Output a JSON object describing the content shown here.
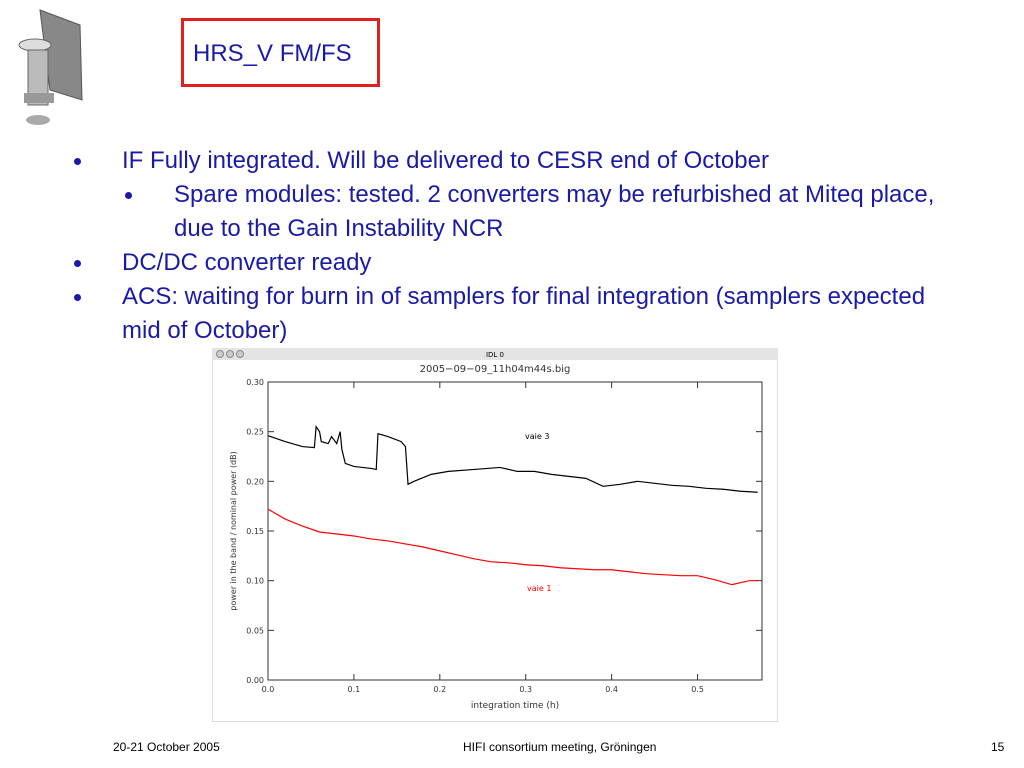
{
  "header": {
    "title": "HRS_V FM/FS"
  },
  "bullets": [
    {
      "text": "IF Fully integrated. Will be delivered to CESR end of October",
      "children": [
        {
          "text": "Spare modules: tested. 2 converters may be refurbished  at Miteq place, due to the Gain Instability NCR"
        }
      ]
    },
    {
      "text": "DC/DC converter ready",
      "children": []
    },
    {
      "text": "ACS: waiting for burn in of samplers for final integration (samplers expected mid of October)",
      "children": []
    }
  ],
  "window": {
    "title": "IDL 0"
  },
  "chart_data": {
    "type": "line",
    "title": "2005−09−09_11h04m44s.big",
    "x_label": "integration time (h)",
    "y_label": "power in the band / nominal power (dB)",
    "xlim": [
      0,
      0.575
    ],
    "ylim": [
      0,
      0.3
    ],
    "xticks": [
      {
        "value": 0,
        "label": "0.0"
      },
      {
        "value": 0.1,
        "label": "0.1"
      },
      {
        "value": 0.2,
        "label": "0.2"
      },
      {
        "value": 0.3,
        "label": "0.3"
      },
      {
        "value": 0.4,
        "label": "0.4"
      },
      {
        "value": 0.5,
        "label": "0.5"
      }
    ],
    "yticks": [
      {
        "value": 0,
        "label": "0.00"
      },
      {
        "value": 0.05,
        "label": "0.05"
      },
      {
        "value": 0.1,
        "label": "0.10"
      },
      {
        "value": 0.15,
        "label": "0.15"
      },
      {
        "value": 0.2,
        "label": "0.20"
      },
      {
        "value": 0.25,
        "label": "0.25"
      },
      {
        "value": 0.3,
        "label": "0.30"
      }
    ],
    "series": [
      {
        "name": "vaie 3",
        "color": "#000000",
        "x": [
          0,
          0.02,
          0.04,
          0.054,
          0.056,
          0.06,
          0.062,
          0.07,
          0.074,
          0.08,
          0.084,
          0.086,
          0.09,
          0.1,
          0.12,
          0.126,
          0.128,
          0.14,
          0.155,
          0.16,
          0.163,
          0.17,
          0.19,
          0.21,
          0.24,
          0.27,
          0.29,
          0.31,
          0.33,
          0.35,
          0.37,
          0.39,
          0.41,
          0.43,
          0.45,
          0.47,
          0.49,
          0.51,
          0.53,
          0.55,
          0.57
        ],
        "values": [
          0.246,
          0.24,
          0.235,
          0.234,
          0.255,
          0.25,
          0.24,
          0.238,
          0.245,
          0.238,
          0.25,
          0.232,
          0.218,
          0.215,
          0.213,
          0.212,
          0.248,
          0.245,
          0.24,
          0.235,
          0.197,
          0.2,
          0.207,
          0.21,
          0.212,
          0.214,
          0.21,
          0.21,
          0.207,
          0.205,
          0.203,
          0.195,
          0.197,
          0.2,
          0.198,
          0.196,
          0.195,
          0.193,
          0.192,
          0.19,
          0.189
        ]
      },
      {
        "name": "vaie 1",
        "color": "#ff0000",
        "x": [
          0,
          0.02,
          0.04,
          0.06,
          0.08,
          0.1,
          0.12,
          0.14,
          0.16,
          0.18,
          0.2,
          0.22,
          0.24,
          0.26,
          0.28,
          0.3,
          0.32,
          0.34,
          0.36,
          0.38,
          0.4,
          0.42,
          0.44,
          0.46,
          0.48,
          0.5,
          0.52,
          0.54,
          0.56,
          0.57
        ],
        "values": [
          0.172,
          0.162,
          0.155,
          0.149,
          0.147,
          0.145,
          0.142,
          0.14,
          0.137,
          0.134,
          0.13,
          0.126,
          0.122,
          0.119,
          0.118,
          0.116,
          0.115,
          0.113,
          0.112,
          0.111,
          0.111,
          0.109,
          0.107,
          0.106,
          0.105,
          0.105,
          0.101,
          0.096,
          0.1,
          0.1
        ]
      }
    ]
  },
  "footer": {
    "date": "20-21 October 2005",
    "event": "HIFI consortium meeting, Gröningen",
    "page": "15"
  }
}
